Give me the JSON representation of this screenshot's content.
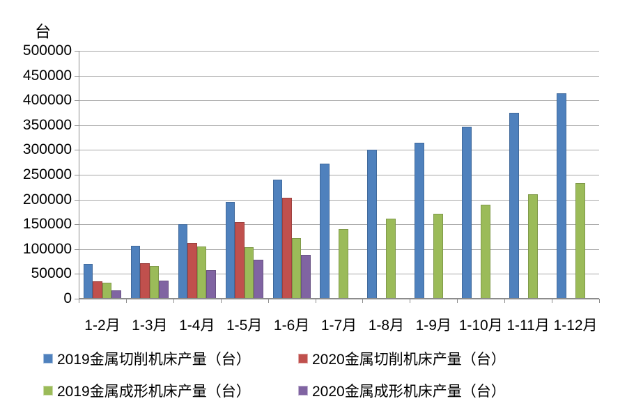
{
  "chart_data": {
    "type": "bar",
    "title": "",
    "unit_label": "台",
    "xlabel": "",
    "ylabel": "台",
    "ylim": [
      0,
      500000
    ],
    "ytick_step": 50000,
    "y_ticks": [
      "500000",
      "450000",
      "400000",
      "350000",
      "300000",
      "250000",
      "200000",
      "150000",
      "100000",
      "50000",
      "0"
    ],
    "grid": true,
    "legend_position": "bottom",
    "categories": [
      "1-2月",
      "1-3月",
      "1-4月",
      "1-5月",
      "1-6月",
      "1-7月",
      "1-8月",
      "1-9月",
      "1-10月",
      "1-11月",
      "1-12月"
    ],
    "series": [
      {
        "name": "2019金属切削机床产量（台）",
        "color": "#4F81BD",
        "values": [
          70000,
          107000,
          151000,
          195000,
          240000,
          272000,
          300000,
          315000,
          347000,
          375000,
          415000
        ]
      },
      {
        "name": "2020金属切削机床产量（台）",
        "color": "#C0504D",
        "values": [
          35000,
          72000,
          113000,
          154000,
          204000,
          null,
          null,
          null,
          null,
          null,
          null
        ]
      },
      {
        "name": "2019金属成形机床产量（台）",
        "color": "#9BBB59",
        "values": [
          32000,
          66000,
          106000,
          104000,
          122000,
          141000,
          161000,
          172000,
          190000,
          211000,
          233000
        ]
      },
      {
        "name": "2020金属成形机床产量（台）",
        "color": "#8064A2",
        "values": [
          17000,
          36000,
          57000,
          79000,
          89000,
          null,
          null,
          null,
          null,
          null,
          null
        ]
      }
    ]
  }
}
